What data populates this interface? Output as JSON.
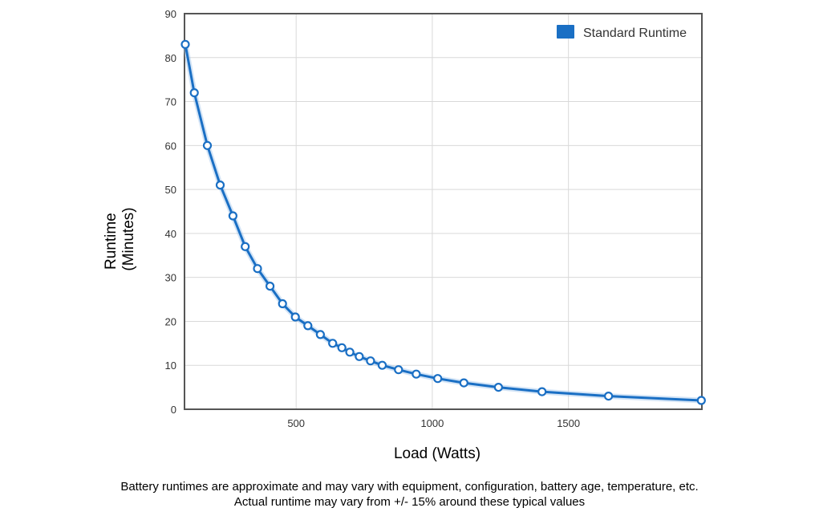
{
  "chart_data": {
    "type": "line",
    "title": "",
    "xlabel": "Load (Watts)",
    "ylabel_lines": [
      "Runtime",
      "(Minutes)"
    ],
    "xlim": [
      90,
      1990
    ],
    "ylim": [
      0,
      90
    ],
    "x_ticks": [
      500,
      1000,
      1500
    ],
    "y_ticks": [
      0,
      10,
      20,
      30,
      40,
      50,
      60,
      70,
      80,
      90
    ],
    "grid": true,
    "legend_position": "top-right",
    "series": [
      {
        "name": "Standard Runtime",
        "color": "#1a6fc4",
        "points": [
          [
            93,
            83
          ],
          [
            126,
            72
          ],
          [
            174,
            60
          ],
          [
            221,
            51
          ],
          [
            268,
            44
          ],
          [
            313,
            37
          ],
          [
            358,
            32
          ],
          [
            404,
            28
          ],
          [
            450,
            24
          ],
          [
            497,
            21
          ],
          [
            543,
            19
          ],
          [
            589,
            17
          ],
          [
            634,
            15
          ],
          [
            668,
            14
          ],
          [
            697,
            13
          ],
          [
            732,
            12
          ],
          [
            773,
            11
          ],
          [
            816,
            10
          ],
          [
            876,
            9
          ],
          [
            941,
            8
          ],
          [
            1020,
            7
          ],
          [
            1116,
            6
          ],
          [
            1243,
            5
          ],
          [
            1403,
            4
          ],
          [
            1647,
            3
          ],
          [
            1988,
            2
          ]
        ]
      }
    ]
  },
  "footer": {
    "line1": "Battery runtimes are approximate and may vary with equipment, configuration, battery age, temperature, etc.",
    "line2": "Actual runtime may vary from +/- 15% around these typical values"
  }
}
